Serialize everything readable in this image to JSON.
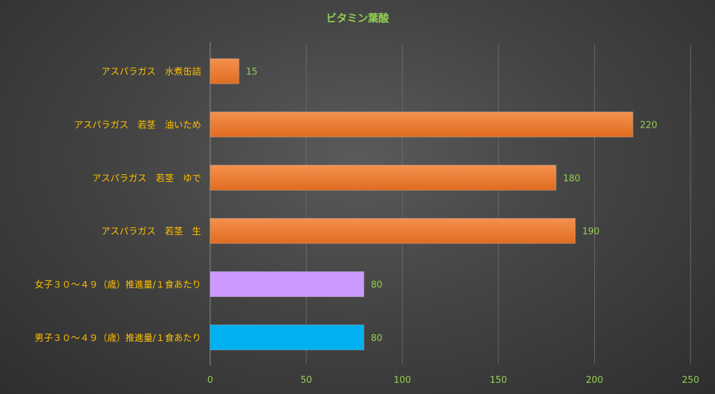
{
  "chart_data": {
    "type": "bar",
    "orientation": "horizontal",
    "title": "ビタミン葉酸",
    "categories": [
      "アスパラガス　水煮缶詰",
      "アスパラガス　若茎　油いため",
      "アスパラガス　若茎　ゆで",
      "アスパラガス　若茎　生",
      "女子３０～４９（歳）推進量/１食あたり",
      "男子３０～４９（歳）推進量/１食あたり"
    ],
    "values": [
      15,
      220,
      180,
      190,
      80,
      80
    ],
    "bar_colors": [
      "#ee7b30",
      "#ee7b30",
      "#ee7b30",
      "#ee7b30",
      "#cc99ff",
      "#00b0f0"
    ],
    "xlim": [
      0,
      250
    ],
    "xticks": [
      0,
      50,
      100,
      150,
      200,
      250
    ],
    "grid": true,
    "colors": {
      "title": "#92d050",
      "category_label": "#ffc000",
      "tick_label": "#92d050",
      "data_label": "#92d050",
      "gridline": "#6a6a6a",
      "axis": "#8c8c8c"
    }
  }
}
